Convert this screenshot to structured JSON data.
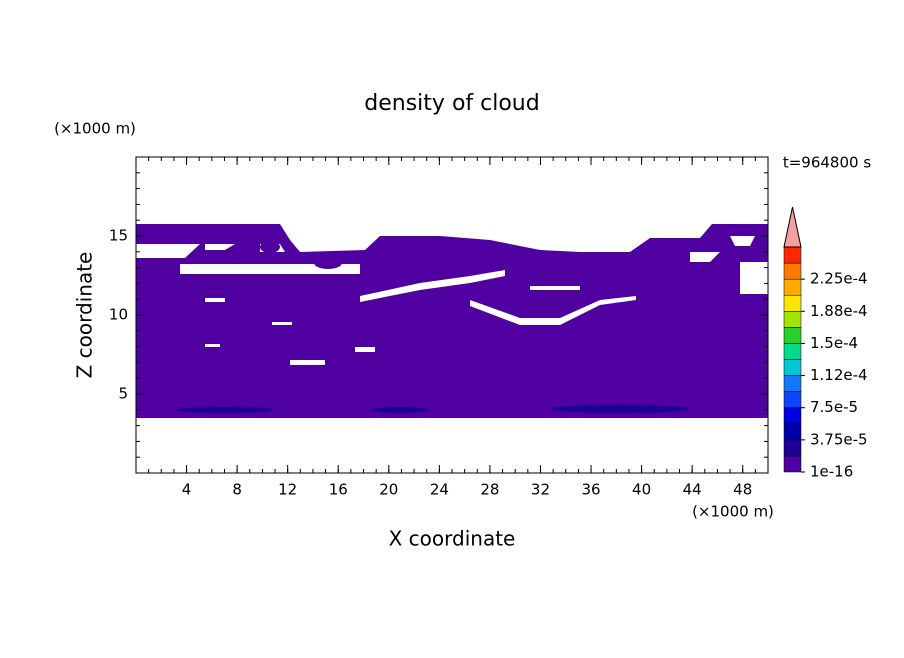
{
  "chart_data": {
    "type": "contour",
    "title": "density of cloud",
    "xlabel": "X coordinate",
    "ylabel": "Z coordinate",
    "x_unit": "(×1000 m)",
    "y_unit": "(×1000 m)",
    "time_label": "t=964800 s",
    "xlim": [
      0,
      50
    ],
    "ylim": [
      0,
      20
    ],
    "xticks": [
      4,
      8,
      12,
      16,
      20,
      24,
      28,
      32,
      36,
      40,
      44,
      48
    ],
    "yticks": [
      5,
      10,
      15
    ],
    "colorbar": {
      "clim": [
        0,
        0.0002625
      ],
      "colors": [
        "#5000a0",
        "#1e0096",
        "#0000aa",
        "#0000dc",
        "#0a46ff",
        "#1478ff",
        "#00c8d2",
        "#00dc8c",
        "#28d228",
        "#a0e600",
        "#ffe600",
        "#ffaa00",
        "#ff7800",
        "#ff2800"
      ],
      "extend_color": "#f5a0a0",
      "ticks": [
        {
          "value": 1e-16,
          "label": "1e-16"
        },
        {
          "value": 3.75e-05,
          "label": "3.75e-5"
        },
        {
          "value": 7.5e-05,
          "label": "7.5e-5"
        },
        {
          "value": 0.0001125,
          "label": "1.12e-4"
        },
        {
          "value": 0.00015,
          "label": "1.5e-4"
        },
        {
          "value": 0.0001875,
          "label": "1.88e-4"
        },
        {
          "value": 0.000225,
          "label": "2.25e-4"
        }
      ]
    }
  }
}
